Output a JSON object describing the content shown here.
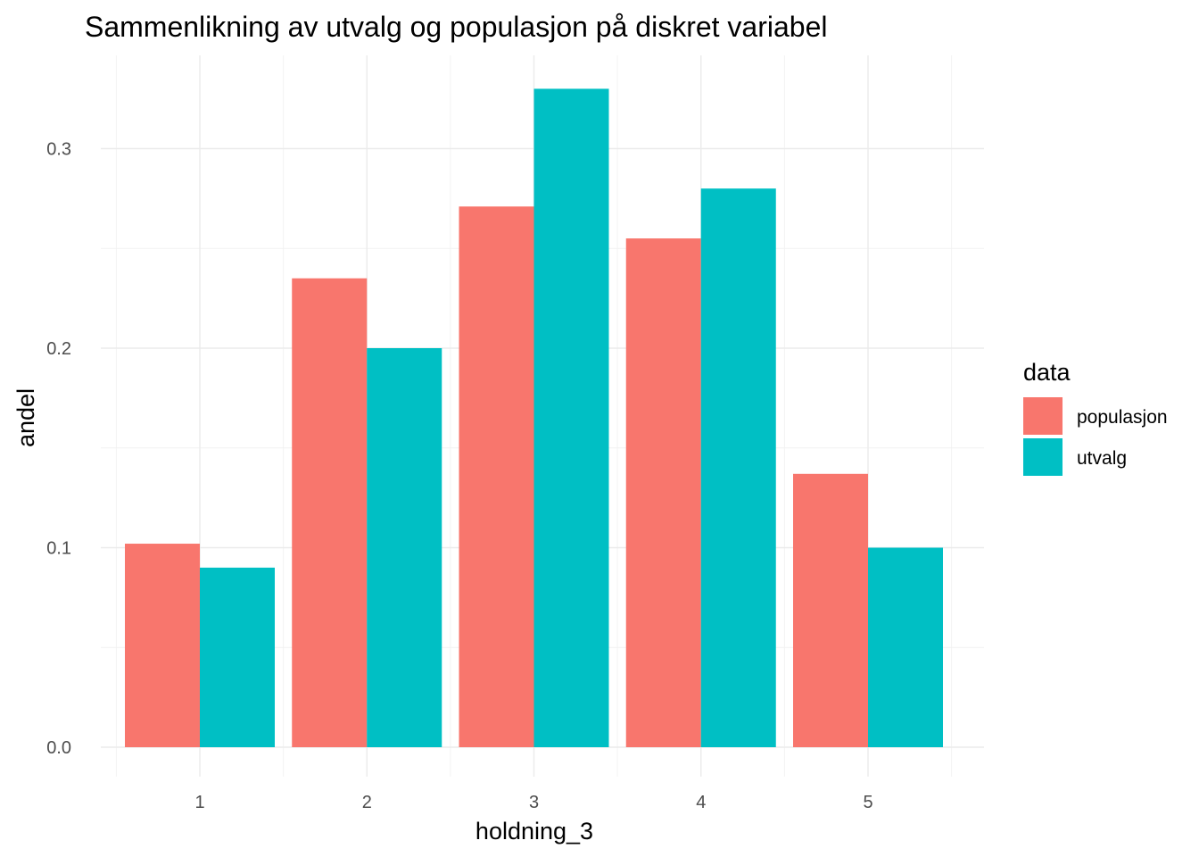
{
  "chart_data": {
    "type": "bar",
    "title": "Sammenlikning av utvalg og populasjon på diskret variabel",
    "xlabel": "holdning_3",
    "ylabel": "andel",
    "categories": [
      "1",
      "2",
      "3",
      "4",
      "5"
    ],
    "series": [
      {
        "name": "populasjon",
        "color": "#F8766D",
        "values": [
          0.102,
          0.235,
          0.271,
          0.255,
          0.137
        ]
      },
      {
        "name": "utvalg",
        "color": "#00BFC4",
        "values": [
          0.09,
          0.2,
          0.33,
          0.28,
          0.1
        ]
      }
    ],
    "ylim": [
      0,
      0.35
    ],
    "yticks": [
      0.0,
      0.1,
      0.2,
      0.3
    ],
    "ytick_labels": [
      "0.0",
      "0.1",
      "0.2",
      "0.3"
    ],
    "legend": {
      "title": "data",
      "position": "right"
    },
    "grid": true
  }
}
